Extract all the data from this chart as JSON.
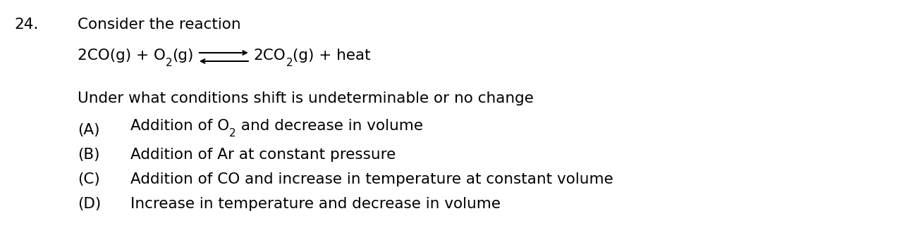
{
  "question_number": "24.",
  "line1": "Consider the reaction",
  "question_text": "Under what conditions shift is undeterminable or no change",
  "option_A_label": "(A)",
  "option_A_text1": "Addition of O",
  "option_A_sub": "2",
  "option_A_text2": " and decrease in volume",
  "option_B_label": "(B)",
  "option_B_text": "Addition of Ar at constant pressure",
  "option_C_label": "(C)",
  "option_C_text": "Addition of CO and increase in temperature at constant volume",
  "option_D_label": "(D)",
  "option_D_text": "Increase in temperature and decrease in volume",
  "bg_color": "#ffffff",
  "text_color": "#000000",
  "fig_width": 12.75,
  "fig_height": 3.44,
  "dpi": 100
}
